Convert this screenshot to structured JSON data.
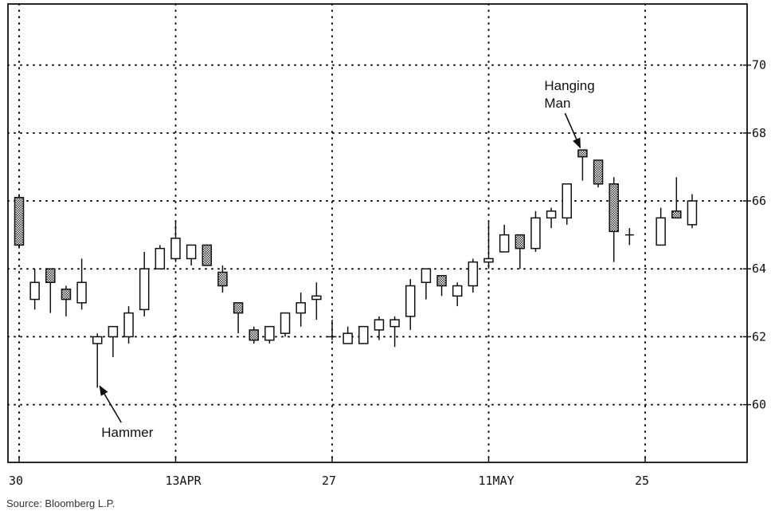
{
  "source": "Source: Bloomberg L.P.",
  "chart_data": {
    "type": "candlestick",
    "y_axis_position": "right",
    "ylim": [
      58.3,
      71.8
    ],
    "yticks": [
      60,
      62,
      64,
      66,
      68,
      70
    ],
    "x_tick_labels": [
      {
        "at": 0,
        "label": "30"
      },
      {
        "at": 10,
        "label": "13APR"
      },
      {
        "at": 20,
        "label": "27"
      },
      {
        "at": 30,
        "label": "11MAY"
      },
      {
        "at": 40,
        "label": "25"
      }
    ],
    "grid": true,
    "candles": [
      {
        "x": 0,
        "open": 66.1,
        "high": 66.2,
        "low": 64.6,
        "close": 64.7
      },
      {
        "x": 1,
        "open": 63.1,
        "high": 64.0,
        "low": 62.8,
        "close": 63.6
      },
      {
        "x": 2,
        "open": 64.0,
        "high": 64.0,
        "low": 62.7,
        "close": 63.6
      },
      {
        "x": 3,
        "open": 63.4,
        "high": 63.5,
        "low": 62.6,
        "close": 63.1
      },
      {
        "x": 4,
        "open": 63.0,
        "high": 64.3,
        "low": 62.8,
        "close": 63.6
      },
      {
        "x": 5,
        "open": 61.8,
        "high": 62.1,
        "low": 60.5,
        "close": 62.0
      },
      {
        "x": 6,
        "open": 62.0,
        "high": 62.3,
        "low": 61.4,
        "close": 62.3
      },
      {
        "x": 7,
        "open": 62.0,
        "high": 62.9,
        "low": 61.8,
        "close": 62.7
      },
      {
        "x": 8,
        "open": 62.8,
        "high": 64.5,
        "low": 62.6,
        "close": 64.0
      },
      {
        "x": 9,
        "open": 64.0,
        "high": 64.7,
        "low": 64.0,
        "close": 64.6
      },
      {
        "x": 10,
        "open": 64.3,
        "high": 65.4,
        "low": 64.2,
        "close": 64.9
      },
      {
        "x": 11,
        "open": 64.3,
        "high": 64.7,
        "low": 64.1,
        "close": 64.7
      },
      {
        "x": 12,
        "open": 64.7,
        "high": 64.7,
        "low": 64.1,
        "close": 64.1
      },
      {
        "x": 13,
        "open": 63.9,
        "high": 64.1,
        "low": 63.3,
        "close": 63.5
      },
      {
        "x": 14,
        "open": 63.0,
        "high": 63.0,
        "low": 62.1,
        "close": 62.7
      },
      {
        "x": 15,
        "open": 62.2,
        "high": 62.3,
        "low": 61.8,
        "close": 61.9
      },
      {
        "x": 16,
        "open": 61.9,
        "high": 62.3,
        "low": 61.8,
        "close": 62.3
      },
      {
        "x": 17,
        "open": 62.1,
        "high": 62.7,
        "low": 62.0,
        "close": 62.7
      },
      {
        "x": 18,
        "open": 62.7,
        "high": 63.3,
        "low": 62.3,
        "close": 63.0
      },
      {
        "x": 19,
        "open": 63.1,
        "high": 63.6,
        "low": 62.5,
        "close": 63.2
      },
      {
        "x": 20,
        "open": 62.0,
        "high": 62.5,
        "low": 61.9,
        "close": 62.0
      },
      {
        "x": 21,
        "open": 61.8,
        "high": 62.3,
        "low": 61.8,
        "close": 62.1
      },
      {
        "x": 22,
        "open": 61.8,
        "high": 62.3,
        "low": 61.8,
        "close": 62.3
      },
      {
        "x": 23,
        "open": 62.2,
        "high": 62.6,
        "low": 61.9,
        "close": 62.5
      },
      {
        "x": 24,
        "open": 62.3,
        "high": 62.6,
        "low": 61.7,
        "close": 62.5
      },
      {
        "x": 25,
        "open": 62.6,
        "high": 63.7,
        "low": 62.2,
        "close": 63.5
      },
      {
        "x": 26,
        "open": 63.6,
        "high": 64.0,
        "low": 63.1,
        "close": 64.0
      },
      {
        "x": 27,
        "open": 63.8,
        "high": 63.8,
        "low": 63.2,
        "close": 63.5
      },
      {
        "x": 28,
        "open": 63.2,
        "high": 63.6,
        "low": 62.9,
        "close": 63.5
      },
      {
        "x": 29,
        "open": 63.5,
        "high": 64.3,
        "low": 63.3,
        "close": 64.2
      },
      {
        "x": 30,
        "open": 64.2,
        "high": 65.4,
        "low": 64.0,
        "close": 64.3
      },
      {
        "x": 31,
        "open": 64.5,
        "high": 65.3,
        "low": 64.5,
        "close": 65.0
      },
      {
        "x": 32,
        "open": 65.0,
        "high": 65.0,
        "low": 64.0,
        "close": 64.6
      },
      {
        "x": 33,
        "open": 64.6,
        "high": 65.7,
        "low": 64.5,
        "close": 65.5
      },
      {
        "x": 34,
        "open": 65.5,
        "high": 65.8,
        "low": 65.2,
        "close": 65.7
      },
      {
        "x": 35,
        "open": 65.5,
        "high": 66.5,
        "low": 65.3,
        "close": 66.5
      },
      {
        "x": 36,
        "open": 67.5,
        "high": 67.5,
        "low": 66.6,
        "close": 67.3
      },
      {
        "x": 37,
        "open": 67.2,
        "high": 67.2,
        "low": 66.4,
        "close": 66.5
      },
      {
        "x": 38,
        "open": 66.5,
        "high": 66.7,
        "low": 64.2,
        "close": 65.1
      },
      {
        "x": 39,
        "open": 65.0,
        "high": 65.2,
        "low": 64.7,
        "close": 65.0
      },
      {
        "x": 41,
        "open": 64.7,
        "high": 65.8,
        "low": 64.7,
        "close": 65.5
      },
      {
        "x": 42,
        "open": 65.7,
        "high": 66.7,
        "low": 65.5,
        "close": 65.5
      },
      {
        "x": 43,
        "open": 65.3,
        "high": 66.2,
        "low": 65.2,
        "close": 66.0
      }
    ],
    "annotations": [
      {
        "text": "Hammer",
        "candle": 5
      },
      {
        "text": "Hanging Man",
        "lines": [
          "Hanging",
          "Man"
        ],
        "candle": 36
      }
    ]
  }
}
